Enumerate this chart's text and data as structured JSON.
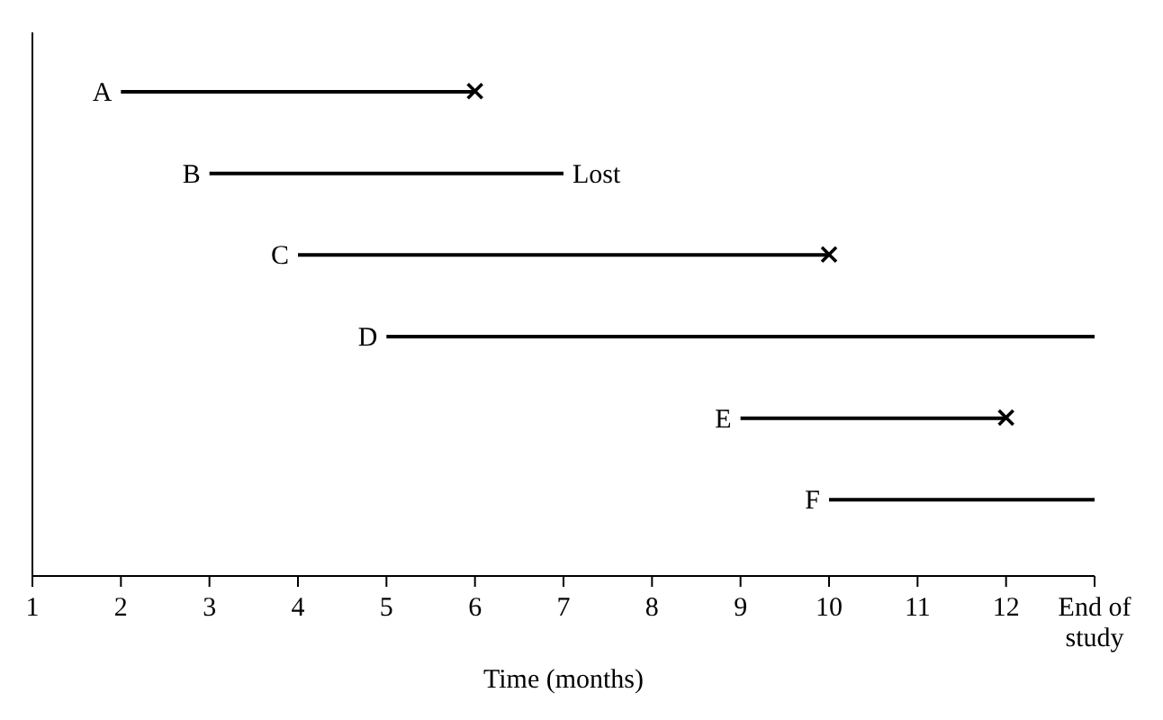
{
  "chart_data": {
    "type": "bar",
    "orientation": "horizontal",
    "xlabel": "Time (months)",
    "categories": [
      "A",
      "B",
      "C",
      "D",
      "E",
      "F"
    ],
    "series": [
      {
        "color": "#000000",
        "base": [
          2,
          3,
          4,
          5,
          9,
          10
        ],
        "values": [
          4,
          4,
          6,
          8,
          3,
          3
        ]
      },
      {
        "type": "scatter",
        "marker": "cross",
        "color": "#000000",
        "values": [
          6,
          null,
          10,
          null,
          12,
          null
        ]
      }
    ],
    "xlim": [
      1,
      13
    ],
    "xticks": [
      1,
      2,
      3,
      4,
      5,
      6,
      7,
      8,
      9,
      10,
      11,
      12,
      {
        "value": 13,
        "label": "End of study"
      }
    ],
    "grid": false,
    "legend": false,
    "annotations": [
      {
        "text": "Lost",
        "x": 7,
        "y": "B"
      }
    ]
  }
}
